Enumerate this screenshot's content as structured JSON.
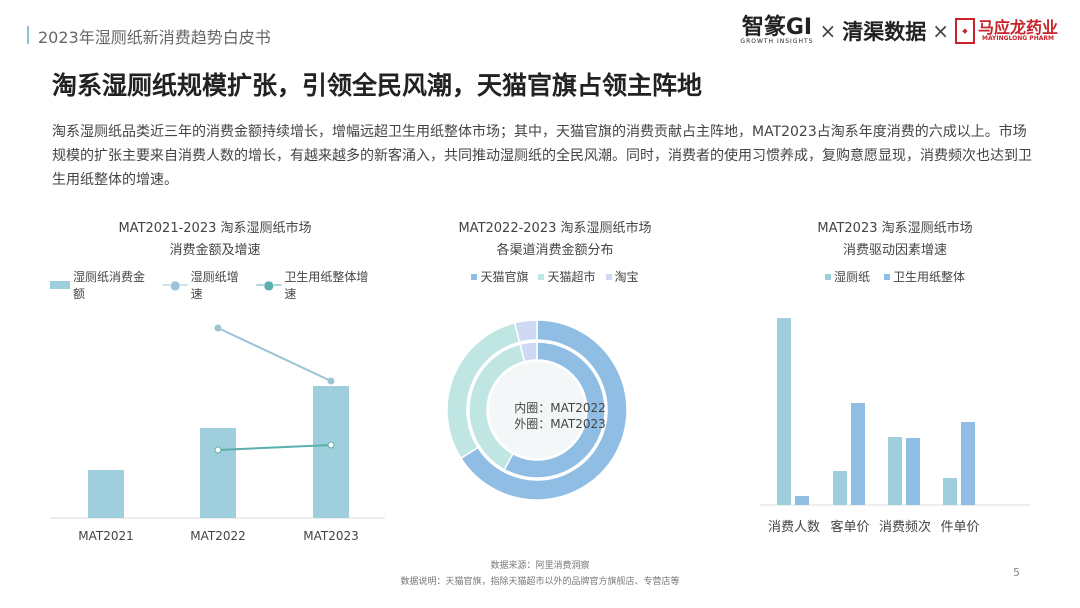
{
  "header": {
    "title": "2023年湿厕纸新消费趋势白皮书",
    "logos": [
      "智篆GI",
      "GROWTH INSIGHTS",
      "清渠数据",
      "马应龙药业",
      "MAYINGLONG PHARM"
    ],
    "separator": "×"
  },
  "headline": "淘系湿厕纸规模扩张，引领全民风潮，天猫官旗占领主阵地",
  "body": "淘系湿厕纸品类近三年的消费金额持续增长，增幅远超卫生用纸整体市场；其中，天猫官旗的消费贡献占主阵地，MAT2023占淘系年度消费的六成以上。市场规模的扩张主要来自消费人数的增长，有越来越多的新客涌入，共同推动湿厕纸的全民风潮。同时，消费者的使用习惯养成，复购意愿显现，消费频次也达到卫生用纸整体的增速。",
  "chart_data": [
    {
      "type": "bar",
      "title": "MAT2021-2023 淘系湿厕纸市场",
      "subtitle": "消费金额及增速",
      "categories": [
        "MAT2021",
        "MAT2022",
        "MAT2023"
      ],
      "series": [
        {
          "name": "湿厕纸消费金额",
          "kind": "bar",
          "values": [
            48,
            90,
            132
          ],
          "color": "#9fcfdc"
        },
        {
          "name": "湿厕纸增速",
          "kind": "line",
          "values": [
            null,
            190,
            137
          ],
          "color": "#9cc3d6"
        },
        {
          "name": "卫生用纸整体增速",
          "kind": "line",
          "values": [
            null,
            68,
            73
          ],
          "color": "#5aaeab"
        }
      ],
      "note": "relative values, no axis printed",
      "legend": "top"
    },
    {
      "type": "pie",
      "title": "MAT2022-2023 淘系湿厕纸市场",
      "subtitle": "各渠道消费金额分布",
      "labels": [
        "天猫官旗",
        "天猫超市",
        "淘宝"
      ],
      "colors": [
        "#8fbde3",
        "#bfe6e2",
        "#cfd9f3"
      ],
      "rings": [
        {
          "name": "MAT2022",
          "label": "内圈：MAT2022",
          "values": [
            58,
            38,
            4
          ]
        },
        {
          "name": "MAT2023",
          "label": "外圈：MAT2023",
          "values": [
            66,
            30,
            4
          ]
        }
      ],
      "legend": "top"
    },
    {
      "type": "bar",
      "title": "MAT2023 淘系湿厕纸市场",
      "subtitle": "消费驱动因素增速",
      "categories": [
        "消费人数",
        "客单价",
        "消费频次",
        "件单价"
      ],
      "series": [
        {
          "name": "湿厕纸",
          "values": [
            187,
            34,
            68,
            27
          ],
          "color": "#9fcfdc"
        },
        {
          "name": "卫生用纸整体",
          "values": [
            9,
            102,
            67,
            83
          ],
          "color": "#8fbde3"
        }
      ],
      "note": "relative values, no axis printed",
      "legend": "top"
    }
  ],
  "footer": {
    "source": "数据来源：阿里消费洞察",
    "note": "数据说明：天猫官旗，指除天猫超市以外的品牌官方旗舰店、专营店等",
    "page": "5"
  }
}
